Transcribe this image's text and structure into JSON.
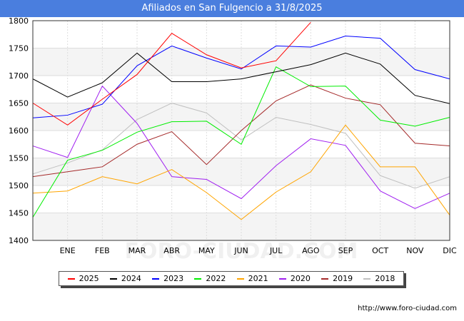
{
  "header": {
    "title": "Afiliados en San Fulgencio a 31/8/2025"
  },
  "footer": {
    "url": "http://www.foro-ciudad.com"
  },
  "watermark": "FORO-CIUDAD.COM",
  "chart_data": {
    "type": "line",
    "title": "Afiliados en San Fulgencio a 31/8/2025",
    "xlabel": "",
    "ylabel": "",
    "categories": [
      "",
      "ENE",
      "FEB",
      "MAR",
      "ABR",
      "MAY",
      "JUN",
      "JUL",
      "AGO",
      "SEP",
      "OCT",
      "NOV",
      "DIC"
    ],
    "ylim": [
      1400,
      1800
    ],
    "yticks": [
      1400,
      1450,
      1500,
      1550,
      1600,
      1650,
      1700,
      1750,
      1800
    ],
    "grid": true,
    "legend_position": "bottom",
    "series": [
      {
        "name": "2025",
        "color": "#ff0000",
        "values": [
          1650,
          1610,
          1657,
          1702,
          1777,
          1738,
          1714,
          1727,
          1797,
          null,
          null,
          null,
          null
        ]
      },
      {
        "name": "2024",
        "color": "#000000",
        "values": [
          1694,
          1661,
          1687,
          1741,
          1689,
          1689,
          1694,
          1707,
          1720,
          1741,
          1721,
          1664,
          1649
        ]
      },
      {
        "name": "2023",
        "color": "#0000ff",
        "values": [
          1623,
          1628,
          1648,
          1718,
          1754,
          1732,
          1712,
          1754,
          1752,
          1772,
          1768,
          1711,
          1694
        ]
      },
      {
        "name": "2022",
        "color": "#00ee00",
        "values": [
          1442,
          1546,
          1564,
          1597,
          1616,
          1617,
          1575,
          1716,
          1680,
          1681,
          1619,
          1608,
          1624
        ]
      },
      {
        "name": "2021",
        "color": "#ffa500",
        "values": [
          1486,
          1490,
          1516,
          1503,
          1529,
          1487,
          1438,
          1488,
          1525,
          1610,
          1534,
          1534,
          1446
        ]
      },
      {
        "name": "2020",
        "color": "#a020f0",
        "values": [
          1572,
          1551,
          1681,
          1613,
          1516,
          1511,
          1476,
          1536,
          1585,
          1573,
          1490,
          1458,
          1486
        ]
      },
      {
        "name": "2019",
        "color": "#a52a2a",
        "values": [
          1516,
          1525,
          1534,
          1575,
          1598,
          1538,
          1600,
          1654,
          1683,
          1659,
          1647,
          1577,
          1572
        ]
      },
      {
        "name": "2018",
        "color": "#c0c0c0",
        "values": [
          1521,
          1541,
          1565,
          1620,
          1650,
          1632,
          1583,
          1624,
          1611,
          1595,
          1518,
          1495,
          1516
        ]
      }
    ]
  }
}
